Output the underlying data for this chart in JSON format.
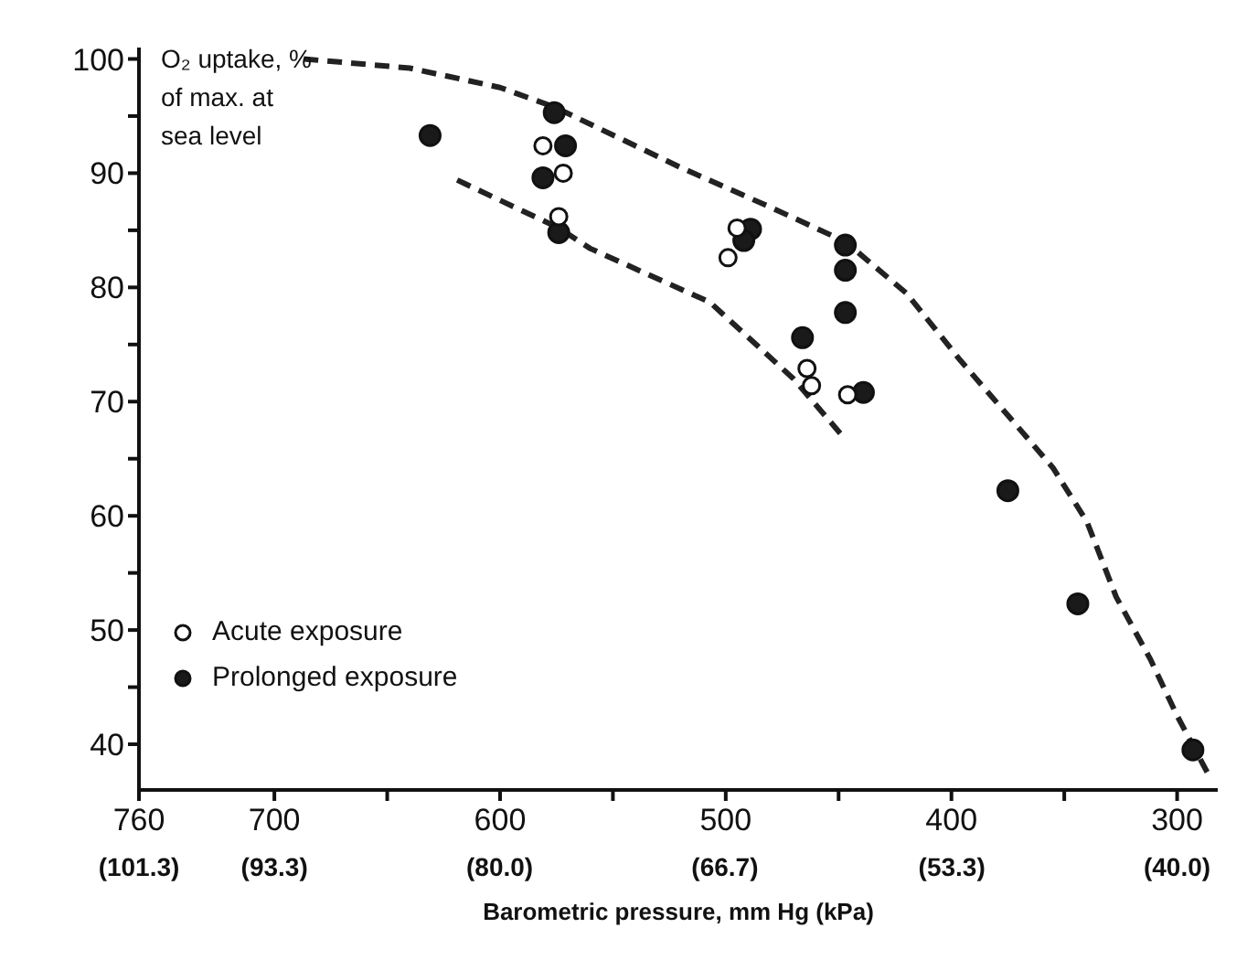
{
  "chart_data": {
    "type": "scatter",
    "ylabel": "O₂ uptake, % of max. at sea level",
    "xlabel": "Barometric pressure, mm Hg (kPa)",
    "xlim": [
      760,
      282
    ],
    "ylim": [
      36,
      101
    ],
    "xticks": [
      760,
      700,
      {
        "value": 650,
        "label": null
      },
      600,
      {
        "value": 550,
        "label": null
      },
      500,
      {
        "value": 450,
        "label": null
      },
      400,
      {
        "value": 350,
        "label": null
      },
      300
    ],
    "x2lim": [
      101.3,
      37.6
    ],
    "x2ticks": [
      {
        "value": 101.3,
        "label": "(101.3)"
      },
      {
        "value": 93.3,
        "label": "(93.3)"
      },
      {
        "value": 80.0,
        "label": "(80.0)"
      },
      {
        "value": 66.7,
        "label": "(66.7)"
      },
      {
        "value": 53.3,
        "label": "(53.3)"
      },
      {
        "value": 40.0,
        "label": "(40.0)"
      }
    ],
    "yticks": [
      40,
      {
        "value": 45,
        "label": null
      },
      50,
      {
        "value": 55,
        "label": null
      },
      60,
      {
        "value": 65,
        "label": null
      },
      70,
      {
        "value": 75,
        "label": null
      },
      80,
      {
        "value": 85,
        "label": null
      },
      90,
      {
        "value": 95,
        "label": null
      },
      100
    ],
    "grid": false,
    "legend": "bottom left",
    "marker": "circle",
    "series": [
      {
        "name": "Acute exposure",
        "color": "#ffffff",
        "x": [
          581,
          572,
          574,
          495,
          499,
          464,
          462,
          446
        ],
        "values": [
          92.4,
          90.0,
          86.2,
          85.2,
          82.6,
          72.9,
          71.4,
          70.6
        ]
      },
      {
        "name": "Prolonged exposure",
        "color": "#1a1a1a",
        "x": [
          631,
          576,
          571,
          581,
          574,
          489,
          492,
          447,
          447,
          447,
          466,
          439,
          375,
          344,
          293
        ],
        "values": [
          93.3,
          95.3,
          92.4,
          89.6,
          84.8,
          85.1,
          84.1,
          83.7,
          81.5,
          77.8,
          75.6,
          70.8,
          62.2,
          52.3,
          39.5
        ]
      },
      {
        "type": "line",
        "color": "#222222",
        "line_style": "dashed",
        "marker": "none",
        "x": [
          687,
          640,
          600,
          576,
          520,
          480,
          447,
          420,
          396,
          375,
          355,
          340,
          327,
          312,
          300,
          286
        ],
        "values": [
          100,
          99.2,
          97.5,
          95.8,
          90.5,
          87,
          84,
          79.5,
          73.6,
          68.8,
          64.2,
          59.5,
          52.9,
          47.5,
          42.5,
          37.3
        ]
      },
      {
        "type": "line",
        "color": "#222222",
        "line_style": "dashed",
        "marker": "none",
        "x": [
          619,
          574,
          560,
          507,
          470,
          447
        ],
        "values": [
          89.4,
          85.2,
          83.4,
          78.7,
          72,
          66.7
        ]
      }
    ]
  }
}
